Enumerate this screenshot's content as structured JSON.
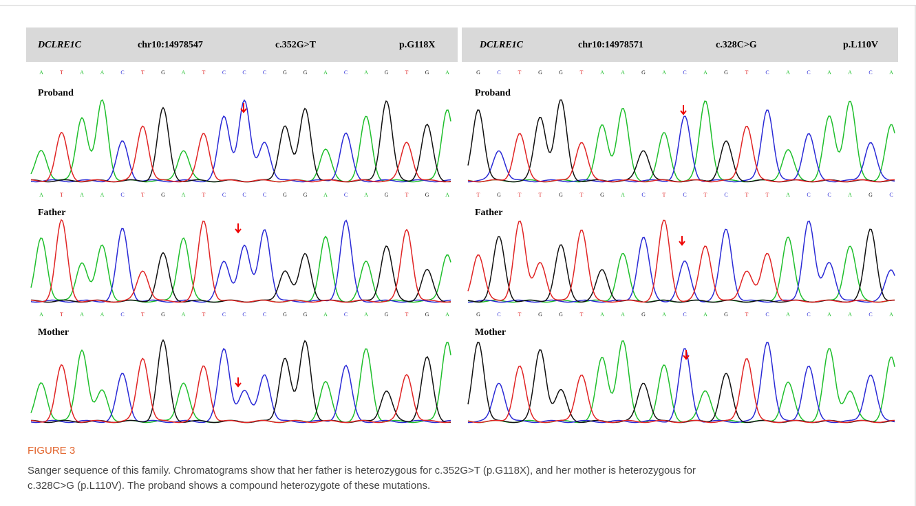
{
  "panels": [
    {
      "header": [
        "DCLRE1C",
        "chr10:14978547",
        "c.352G>T",
        "p.G118X"
      ],
      "rows": [
        {
          "label": "Proband",
          "sequence": [
            "A",
            "T",
            "A",
            "A",
            "C",
            "T",
            "G",
            "A",
            "T",
            "C",
            "C",
            "C",
            "G",
            "G",
            "A",
            "C",
            "A",
            "G",
            "T",
            "G",
            "A"
          ]
        },
        {
          "label": "Father",
          "sequence": [
            "A",
            "T",
            "A",
            "A",
            "C",
            "T",
            "G",
            "A",
            "T",
            "C",
            "C",
            "C",
            "G",
            "G",
            "A",
            "C",
            "A",
            "G",
            "T",
            "G",
            "A"
          ]
        },
        {
          "label": "Mother",
          "sequence": [
            "A",
            "T",
            "A",
            "A",
            "C",
            "T",
            "G",
            "A",
            "T",
            "C",
            "C",
            "C",
            "G",
            "G",
            "A",
            "C",
            "A",
            "G",
            "T",
            "G",
            "A"
          ]
        }
      ]
    },
    {
      "header": [
        "DCLRE1C",
        "chr10:14978571",
        "c.328C>G",
        "p.L110V"
      ],
      "rows": [
        {
          "label": "Proband",
          "sequence": [
            "G",
            "C",
            "T",
            "G",
            "G",
            "T",
            "A",
            "A",
            "G",
            "A",
            "C",
            "A",
            "G",
            "T",
            "C",
            "A",
            "C",
            "A",
            "A",
            "C",
            "A"
          ]
        },
        {
          "label": "Father",
          "sequence": [
            "T",
            "G",
            "T",
            "T",
            "G",
            "T",
            "G",
            "A",
            "C",
            "T",
            "C",
            "T",
            "C",
            "T",
            "T",
            "A",
            "C",
            "C",
            "A",
            "G",
            "C"
          ]
        },
        {
          "label": "Mother",
          "sequence": [
            "G",
            "C",
            "T",
            "G",
            "G",
            "T",
            "A",
            "A",
            "G",
            "A",
            "C",
            "A",
            "G",
            "T",
            "C",
            "A",
            "C",
            "A",
            "A",
            "C",
            "A"
          ]
        }
      ]
    }
  ],
  "figure": {
    "label": "FIGURE 3",
    "caption_lines": [
      "Sanger sequence of this family. Chromatograms show that her father is heterozygous for c.352G>T (p.G118X), and her mother is heterozygous for",
      "c.328C>G (p.L110V). The proband shows a compound heterozygote of these mutations."
    ]
  }
}
